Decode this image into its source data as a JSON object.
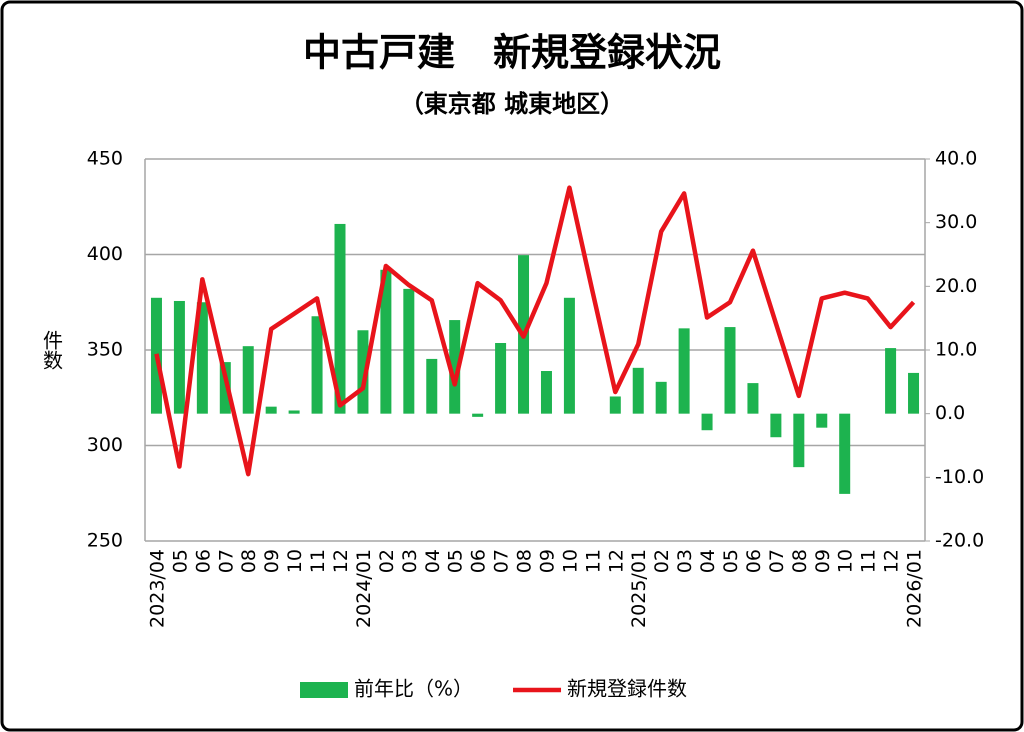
{
  "chart_data": {
    "type": "combo",
    "title": "中古戸建　新規登録状況",
    "subtitle": "（東京都 城東地区）",
    "y_label": "件数",
    "categories": [
      "2023/04",
      "05",
      "06",
      "07",
      "08",
      "09",
      "10",
      "11",
      "12",
      "2024/01",
      "02",
      "03",
      "04",
      "05",
      "06",
      "07",
      "08",
      "09",
      "10",
      "11",
      "12",
      "2025/01",
      "02",
      "03",
      "04",
      "05",
      "06",
      "07",
      "08",
      "09",
      "10",
      "11",
      "12",
      "2026/01"
    ],
    "series": [
      {
        "name": "前年比（%）",
        "type": "bar",
        "axis": "y2",
        "color": "#1db34f",
        "values": [
          18.2,
          17.7,
          17.5,
          8.1,
          10.6,
          1.1,
          0.5,
          15.3,
          29.8,
          13.1,
          22.6,
          19.6,
          8.6,
          14.7,
          -0.5,
          11.1,
          24.9,
          6.7,
          18.2,
          0,
          2.7,
          7.2,
          5.0,
          13.4,
          -2.6,
          13.6,
          4.8,
          -3.7,
          -8.4,
          -2.2,
          -12.6,
          0,
          10.3,
          6.4
        ]
      },
      {
        "name": "新規登録件数",
        "type": "line",
        "axis": "y",
        "color": "#e8141b",
        "values": [
          348,
          289,
          387,
          336,
          285,
          361,
          369,
          377,
          321,
          330,
          394,
          384,
          376,
          332,
          385,
          376,
          357,
          385,
          435,
          381,
          328,
          353,
          412,
          432,
          367,
          375,
          402,
          364,
          326,
          377,
          380,
          377,
          362,
          375
        ]
      }
    ],
    "ylim": [
      250,
      450
    ],
    "yticks": [
      250,
      300,
      350,
      400,
      450
    ],
    "y2lim": [
      -20,
      40
    ],
    "y2ticks": [
      {
        "value": -20,
        "label": "-20.0"
      },
      {
        "value": -10,
        "label": "-10.0"
      },
      {
        "value": 0,
        "label": "0.0"
      },
      {
        "value": 10,
        "label": "10.0"
      },
      {
        "value": 20,
        "label": "20.0"
      },
      {
        "value": 30,
        "label": "30.0"
      },
      {
        "value": 40,
        "label": "40.0"
      }
    ],
    "y2_negative_color": "#e8141b",
    "grid": true
  }
}
